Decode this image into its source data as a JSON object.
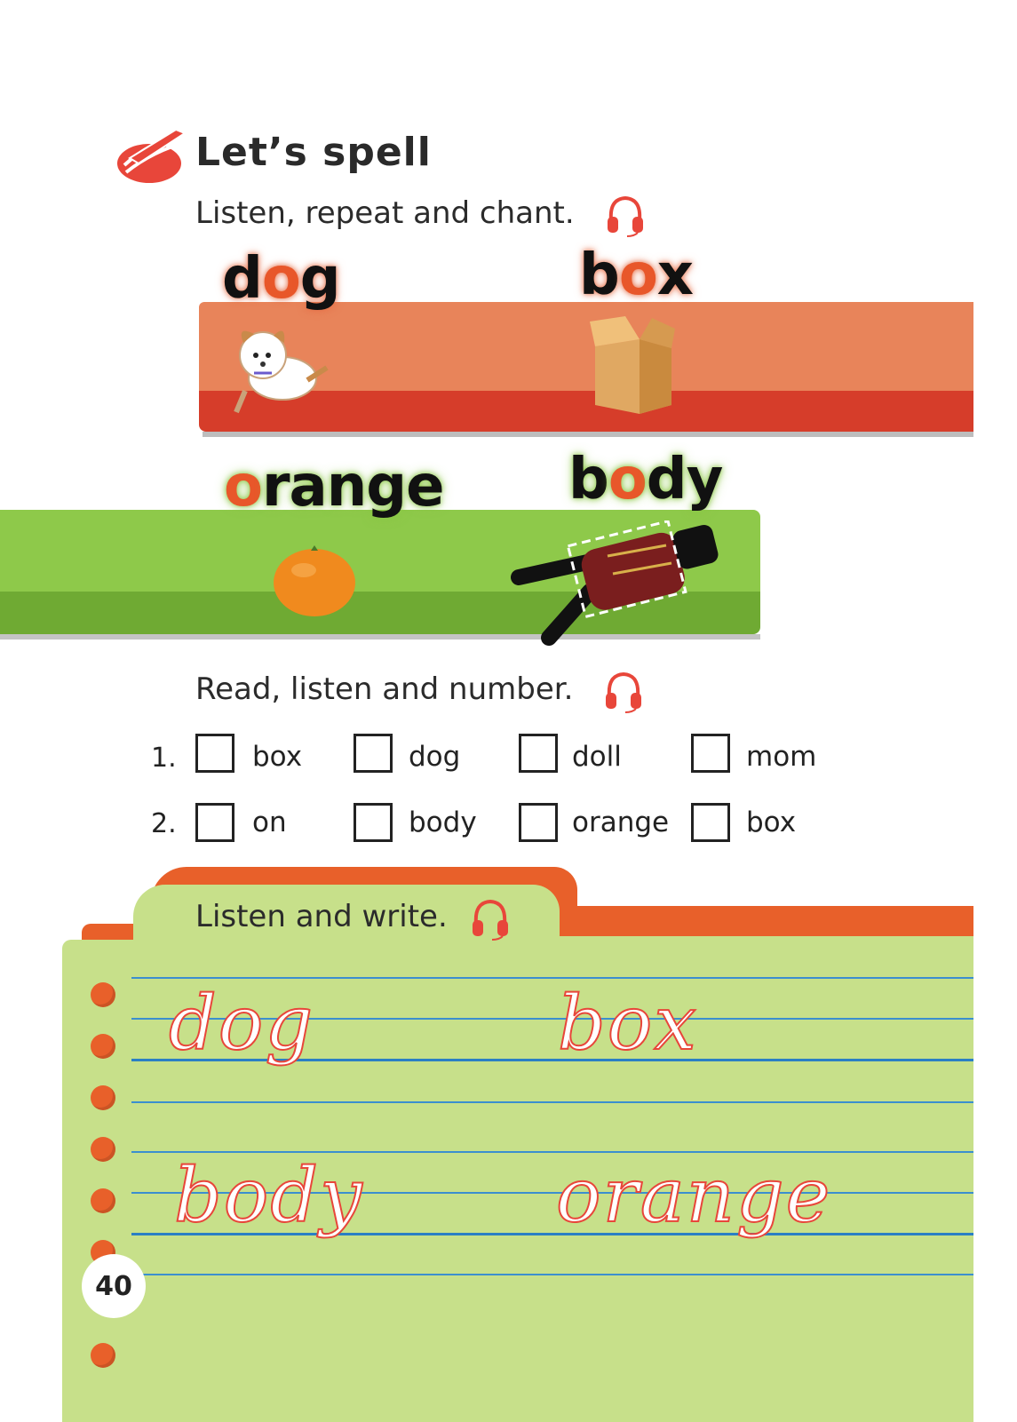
{
  "header": {
    "title": "Let’s spell",
    "instruction_1": "Listen, repeat and chant.",
    "instruction_2": "Read, listen and number.",
    "instruction_3": "Listen and write."
  },
  "chant_words": [
    {
      "pre": "d",
      "hl": "o",
      "post": "g",
      "picture": "dog"
    },
    {
      "pre": "b",
      "hl": "o",
      "post": "x",
      "picture": "box"
    },
    {
      "pre": "",
      "hl": "o",
      "post": "range",
      "picture": "orange"
    },
    {
      "pre": "b",
      "hl": "o",
      "post": "dy",
      "picture": "body"
    }
  ],
  "number_rows": [
    {
      "num": "1.",
      "words": [
        "box",
        "dog",
        "doll",
        "mom"
      ]
    },
    {
      "num": "2.",
      "words": [
        "on",
        "body",
        "orange",
        "box"
      ]
    }
  ],
  "write_words": [
    "dog",
    "box",
    "body",
    "orange"
  ],
  "page_number": "40",
  "icons": {
    "section": "pencil-stroke-icon",
    "audio": "headphones-icon"
  },
  "colors": {
    "accent": "#e8572a",
    "red_band": "#d63d2a",
    "green_band": "#8ec94a",
    "notebook": "#c7e08a",
    "ruled_line": "#3b8fcf"
  }
}
